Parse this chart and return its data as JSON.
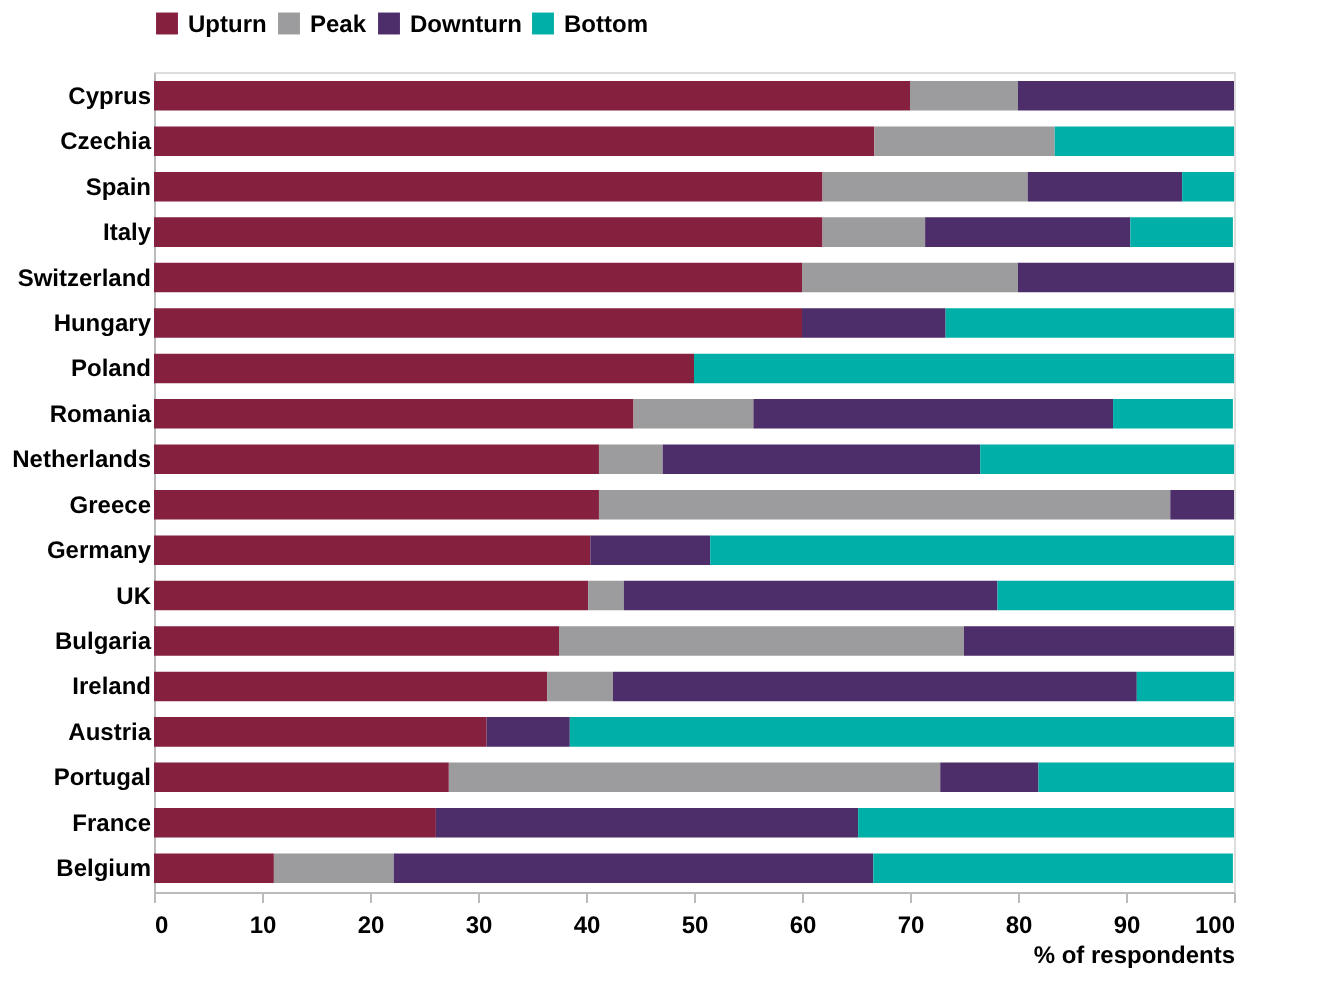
{
  "chart_data": {
    "type": "bar",
    "orientation": "horizontal",
    "stacked": true,
    "xlabel": "% of respondents",
    "categories": [
      "Cyprus",
      "Czechia",
      "Spain",
      "Italy",
      "Switzerland",
      "Hungary",
      "Poland",
      "Romania",
      "Netherlands",
      "Greece",
      "Germany",
      "UK",
      "Bulgaria",
      "Ireland",
      "Austria",
      "Portugal",
      "France",
      "Belgium"
    ],
    "series": [
      {
        "name": "Upturn",
        "color": "#86203f",
        "values": [
          70,
          66.7,
          61.9,
          61.9,
          60,
          60,
          50,
          44.4,
          41.2,
          41.2,
          40.4,
          40.2,
          37.5,
          36.4,
          30.8,
          27.3,
          26.1,
          11.1
        ]
      },
      {
        "name": "Peak",
        "color": "#9c9c9e",
        "values": [
          10,
          16.7,
          19.0,
          9.5,
          20,
          0,
          0,
          11.1,
          5.9,
          52.9,
          0,
          3.3,
          37.5,
          6.1,
          0,
          45.5,
          0,
          11.1
        ]
      },
      {
        "name": "Downturn",
        "color": "#4d2d6a",
        "values": [
          20,
          0,
          14.3,
          19.0,
          20,
          13.3,
          0,
          33.3,
          29.4,
          5.9,
          11.1,
          34.6,
          25,
          48.5,
          7.7,
          9.1,
          39.1,
          44.4
        ]
      },
      {
        "name": "Bottom",
        "color": "#00b0a8",
        "values": [
          0,
          16.6,
          4.8,
          9.5,
          0,
          26.7,
          50,
          11.1,
          23.5,
          0,
          48.5,
          21.9,
          0,
          9.0,
          61.5,
          18.1,
          34.8,
          33.3
        ]
      }
    ],
    "xlim": [
      0,
      100
    ],
    "xticks": [
      0,
      10,
      20,
      30,
      40,
      50,
      60,
      70,
      80,
      90,
      100
    ],
    "grid": false,
    "legend": "top"
  }
}
